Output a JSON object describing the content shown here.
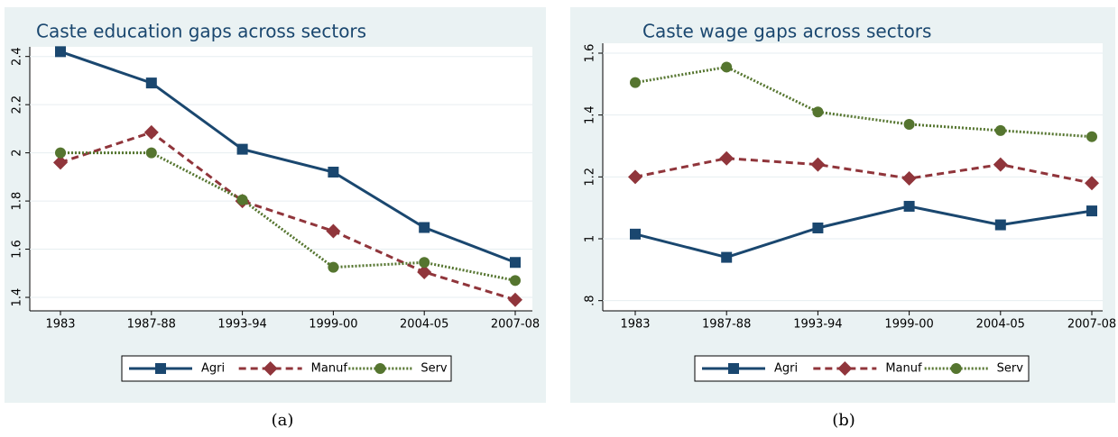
{
  "chart_data": [
    {
      "type": "line",
      "title": "Caste education gaps across sectors",
      "caption": "(a)",
      "categories": [
        "1983",
        "1987-88",
        "1993-94",
        "1999-00",
        "2004-05",
        "2007-08"
      ],
      "ylim": [
        1.344,
        2.44
      ],
      "yticks": [
        1.4,
        1.6,
        1.8,
        2,
        2.2,
        2.4
      ],
      "grid": true,
      "legend": "bottom",
      "series": [
        {
          "name": "Agri",
          "color": "#1a476f",
          "values": [
            2.42,
            2.29,
            2.015,
            1.92,
            1.69,
            1.545
          ]
        },
        {
          "name": "Manuf",
          "color": "#90353b",
          "values": [
            1.96,
            2.085,
            1.8,
            1.675,
            1.505,
            1.39
          ]
        },
        {
          "name": "Serv",
          "color": "#55752f",
          "values": [
            2.0,
            2.0,
            1.805,
            1.525,
            1.545,
            1.47
          ]
        }
      ]
    },
    {
      "type": "line",
      "title": "Caste wage gaps across sectors",
      "caption": "(b)",
      "categories": [
        "1983",
        "1987-88",
        "1993-94",
        "1999-00",
        "2004-05",
        "2007-08"
      ],
      "ylim": [
        0.767,
        1.632
      ],
      "yticks": [
        {
          "value": 0.8,
          "label": ".8"
        },
        1,
        1.2,
        1.4,
        1.6
      ],
      "grid": true,
      "legend": "bottom",
      "series": [
        {
          "name": "Agri",
          "color": "#1a476f",
          "values": [
            1.015,
            0.94,
            1.035,
            1.105,
            1.045,
            1.09
          ]
        },
        {
          "name": "Manuf",
          "color": "#90353b",
          "values": [
            1.2,
            1.26,
            1.24,
            1.195,
            1.24,
            1.18
          ]
        },
        {
          "name": "Serv",
          "color": "#55752f",
          "values": [
            1.505,
            1.555,
            1.41,
            1.37,
            1.35,
            1.33
          ]
        }
      ]
    }
  ]
}
